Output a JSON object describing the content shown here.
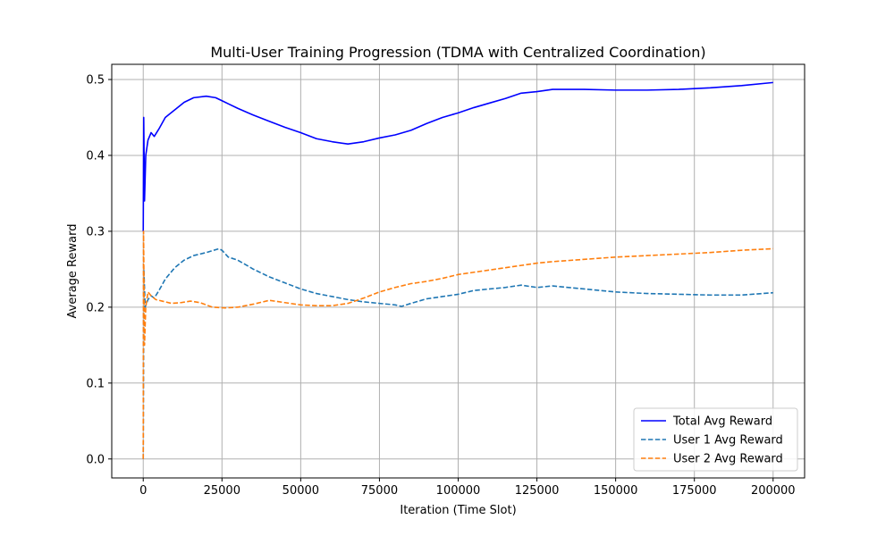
{
  "chart_data": {
    "type": "line",
    "title": "Multi-User Training Progression (TDMA with Centralized Coordination)",
    "xlabel": "Iteration (Time Slot)",
    "ylabel": "Average Reward",
    "xlim": [
      -10000,
      210000
    ],
    "ylim": [
      -0.025,
      0.52
    ],
    "xticks": [
      0,
      25000,
      50000,
      75000,
      100000,
      125000,
      150000,
      175000,
      200000
    ],
    "yticks": [
      0.0,
      0.1,
      0.2,
      0.3,
      0.4,
      0.5
    ],
    "xtick_labels": [
      "0",
      "25000",
      "50000",
      "75000",
      "100000",
      "125000",
      "150000",
      "175000",
      "200000"
    ],
    "ytick_labels": [
      "0.0",
      "0.1",
      "0.2",
      "0.3",
      "0.4",
      "0.5"
    ],
    "grid": true,
    "legend_position": "lower-right",
    "series": [
      {
        "name": "Total Avg Reward",
        "color": "#0000ff",
        "style": "solid",
        "points": [
          [
            0,
            0.3
          ],
          [
            150,
            0.45
          ],
          [
            400,
            0.34
          ],
          [
            800,
            0.4
          ],
          [
            1500,
            0.42
          ],
          [
            2500,
            0.43
          ],
          [
            3500,
            0.425
          ],
          [
            5000,
            0.435
          ],
          [
            7000,
            0.45
          ],
          [
            10000,
            0.46
          ],
          [
            13000,
            0.47
          ],
          [
            16000,
            0.476
          ],
          [
            20000,
            0.478
          ],
          [
            23000,
            0.476
          ],
          [
            25000,
            0.472
          ],
          [
            27000,
            0.468
          ],
          [
            30000,
            0.462
          ],
          [
            35000,
            0.453
          ],
          [
            40000,
            0.445
          ],
          [
            45000,
            0.437
          ],
          [
            50000,
            0.43
          ],
          [
            55000,
            0.422
          ],
          [
            60000,
            0.418
          ],
          [
            65000,
            0.415
          ],
          [
            70000,
            0.418
          ],
          [
            75000,
            0.423
          ],
          [
            80000,
            0.427
          ],
          [
            85000,
            0.433
          ],
          [
            90000,
            0.442
          ],
          [
            95000,
            0.45
          ],
          [
            100000,
            0.456
          ],
          [
            105000,
            0.463
          ],
          [
            110000,
            0.469
          ],
          [
            115000,
            0.475
          ],
          [
            120000,
            0.482
          ],
          [
            125000,
            0.484
          ],
          [
            130000,
            0.487
          ],
          [
            140000,
            0.487
          ],
          [
            150000,
            0.486
          ],
          [
            160000,
            0.486
          ],
          [
            170000,
            0.487
          ],
          [
            180000,
            0.489
          ],
          [
            190000,
            0.492
          ],
          [
            200000,
            0.496
          ]
        ]
      },
      {
        "name": "User 1 Avg Reward",
        "color": "#1f77b4",
        "style": "dashed",
        "points": [
          [
            0,
            0.0
          ],
          [
            200,
            0.25
          ],
          [
            600,
            0.2
          ],
          [
            1500,
            0.21
          ],
          [
            2500,
            0.215
          ],
          [
            3500,
            0.212
          ],
          [
            5000,
            0.222
          ],
          [
            7000,
            0.237
          ],
          [
            10000,
            0.252
          ],
          [
            13000,
            0.262
          ],
          [
            16000,
            0.268
          ],
          [
            20000,
            0.272
          ],
          [
            24000,
            0.277
          ],
          [
            25000,
            0.275
          ],
          [
            27000,
            0.266
          ],
          [
            30000,
            0.262
          ],
          [
            35000,
            0.25
          ],
          [
            40000,
            0.24
          ],
          [
            45000,
            0.232
          ],
          [
            50000,
            0.224
          ],
          [
            55000,
            0.218
          ],
          [
            60000,
            0.214
          ],
          [
            65000,
            0.21
          ],
          [
            70000,
            0.207
          ],
          [
            75000,
            0.205
          ],
          [
            80000,
            0.203
          ],
          [
            82000,
            0.201
          ],
          [
            85000,
            0.205
          ],
          [
            90000,
            0.211
          ],
          [
            95000,
            0.214
          ],
          [
            100000,
            0.217
          ],
          [
            105000,
            0.222
          ],
          [
            110000,
            0.224
          ],
          [
            115000,
            0.226
          ],
          [
            120000,
            0.229
          ],
          [
            125000,
            0.226
          ],
          [
            130000,
            0.228
          ],
          [
            135000,
            0.226
          ],
          [
            140000,
            0.224
          ],
          [
            150000,
            0.22
          ],
          [
            160000,
            0.218
          ],
          [
            170000,
            0.217
          ],
          [
            180000,
            0.216
          ],
          [
            190000,
            0.216
          ],
          [
            200000,
            0.219
          ]
        ]
      },
      {
        "name": "User 2 Avg Reward",
        "color": "#ff7f0e",
        "style": "dashed",
        "points": [
          [
            0,
            0.0
          ],
          [
            100,
            0.3
          ],
          [
            400,
            0.15
          ],
          [
            800,
            0.2
          ],
          [
            1500,
            0.22
          ],
          [
            2500,
            0.215
          ],
          [
            4000,
            0.21
          ],
          [
            6000,
            0.208
          ],
          [
            9000,
            0.205
          ],
          [
            12000,
            0.206
          ],
          [
            15000,
            0.208
          ],
          [
            18000,
            0.206
          ],
          [
            22000,
            0.2
          ],
          [
            26000,
            0.199
          ],
          [
            30000,
            0.2
          ],
          [
            35000,
            0.204
          ],
          [
            40000,
            0.209
          ],
          [
            45000,
            0.206
          ],
          [
            50000,
            0.203
          ],
          [
            55000,
            0.202
          ],
          [
            60000,
            0.202
          ],
          [
            65000,
            0.205
          ],
          [
            70000,
            0.212
          ],
          [
            75000,
            0.22
          ],
          [
            80000,
            0.226
          ],
          [
            85000,
            0.231
          ],
          [
            90000,
            0.234
          ],
          [
            95000,
            0.238
          ],
          [
            100000,
            0.243
          ],
          [
            105000,
            0.246
          ],
          [
            110000,
            0.249
          ],
          [
            115000,
            0.252
          ],
          [
            120000,
            0.255
          ],
          [
            125000,
            0.258
          ],
          [
            130000,
            0.26
          ],
          [
            140000,
            0.263
          ],
          [
            150000,
            0.266
          ],
          [
            160000,
            0.268
          ],
          [
            170000,
            0.27
          ],
          [
            180000,
            0.272
          ],
          [
            190000,
            0.275
          ],
          [
            200000,
            0.277
          ]
        ]
      }
    ]
  }
}
